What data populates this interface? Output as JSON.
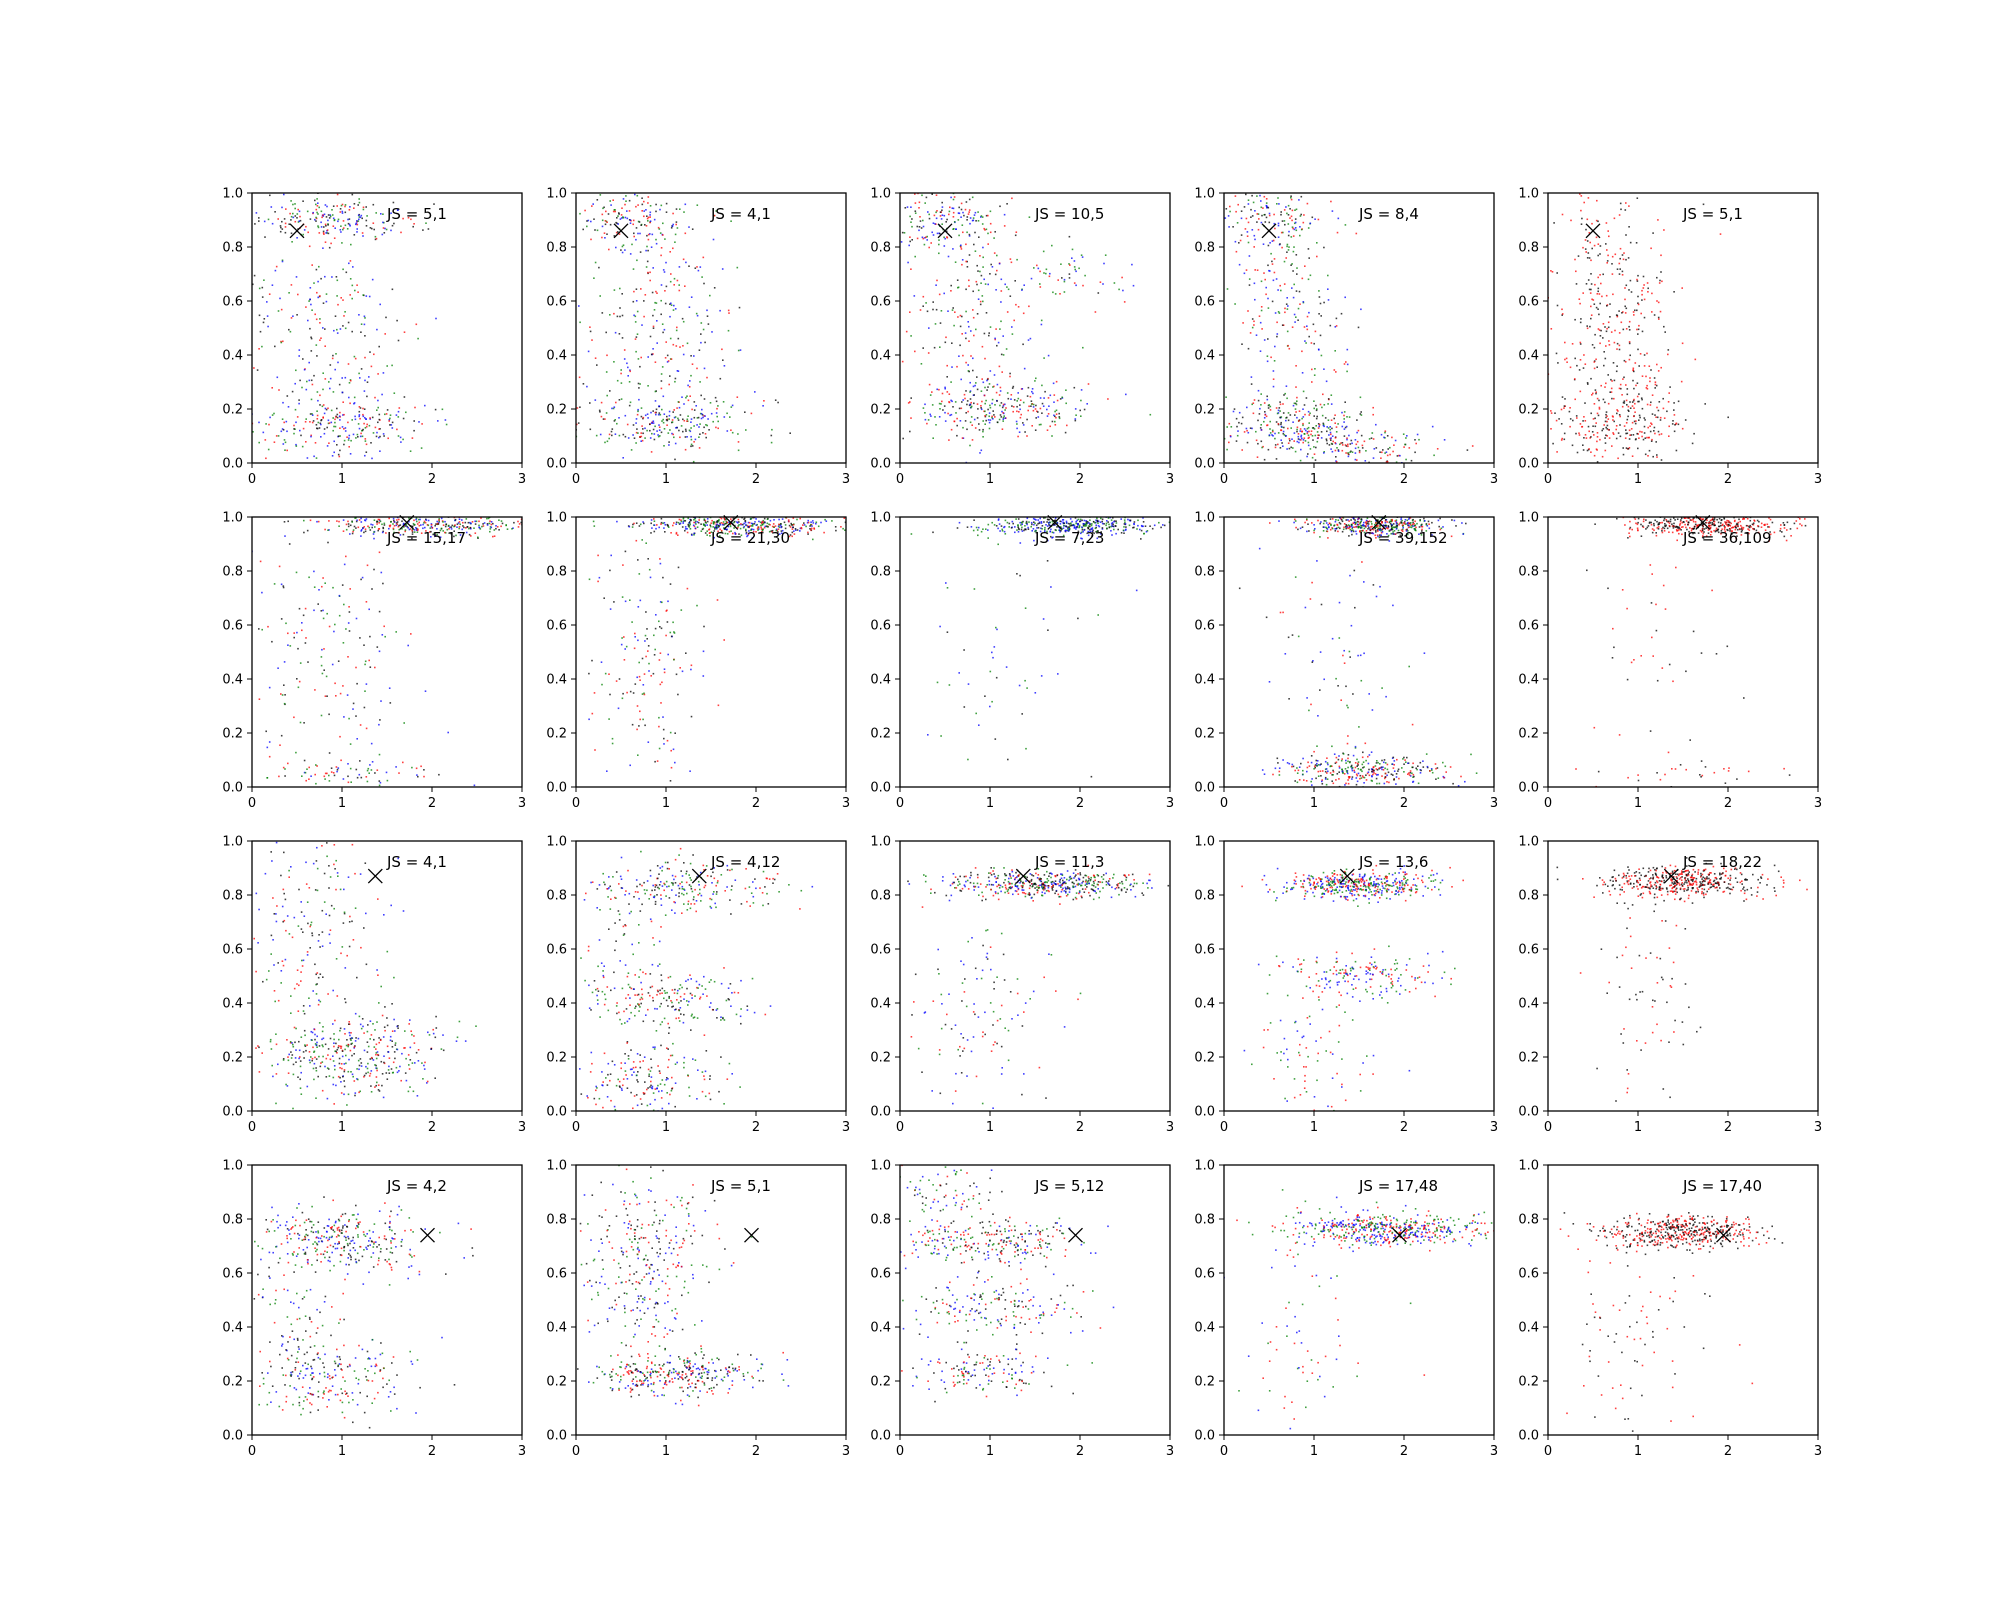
{
  "figure": {
    "colors": {
      "blue": "#0000ff",
      "red": "#ff0000",
      "green": "#008000",
      "black": "#000000",
      "axis": "#000000"
    }
  },
  "chart_data": [
    {
      "type": "scatter",
      "row": 0,
      "col": 0,
      "annotation": "JS = 5,1",
      "xlim": [
        0,
        3
      ],
      "ylim": [
        0,
        1
      ],
      "xticks": [
        "0",
        "1",
        "2",
        "3"
      ],
      "yticks": [
        "0.0",
        "0.2",
        "0.4",
        "0.6",
        "0.8",
        "1.0"
      ],
      "marker": {
        "x": 0.5,
        "y": 0.86
      },
      "series_colors": [
        "blue",
        "red",
        "green",
        "black"
      ],
      "clusters": [
        {
          "x": 0.9,
          "y": 0.9,
          "sx": 0.45,
          "sy": 0.04,
          "n": 200
        },
        {
          "x": 0.8,
          "y": 0.5,
          "sx": 0.4,
          "sy": 0.25,
          "n": 260
        },
        {
          "x": 1.0,
          "y": 0.14,
          "sx": 0.5,
          "sy": 0.05,
          "n": 220
        }
      ]
    },
    {
      "type": "scatter",
      "row": 0,
      "col": 1,
      "annotation": "JS = 4,1",
      "xlim": [
        0,
        3
      ],
      "ylim": [
        0,
        1
      ],
      "xticks": [
        "0",
        "1",
        "2",
        "3"
      ],
      "yticks": [
        "0.0",
        "0.2",
        "0.4",
        "0.6",
        "0.8",
        "1.0"
      ],
      "marker": {
        "x": 0.5,
        "y": 0.86
      },
      "series_colors": [
        "blue",
        "red",
        "green",
        "black"
      ],
      "clusters": [
        {
          "x": 0.6,
          "y": 0.9,
          "sx": 0.35,
          "sy": 0.05,
          "n": 160
        },
        {
          "x": 0.9,
          "y": 0.5,
          "sx": 0.45,
          "sy": 0.22,
          "n": 260
        },
        {
          "x": 1.0,
          "y": 0.15,
          "sx": 0.5,
          "sy": 0.05,
          "n": 240
        }
      ]
    },
    {
      "type": "scatter",
      "row": 0,
      "col": 2,
      "annotation": "JS = 10,5",
      "xlim": [
        0,
        3
      ],
      "ylim": [
        0,
        1
      ],
      "xticks": [
        "0",
        "1",
        "2",
        "3"
      ],
      "yticks": [
        "0.0",
        "0.2",
        "0.4",
        "0.6",
        "0.8",
        "1.0"
      ],
      "marker": {
        "x": 0.5,
        "y": 0.86
      },
      "series_colors": [
        "blue",
        "red",
        "green",
        "black"
      ],
      "clusters": [
        {
          "x": 0.5,
          "y": 0.9,
          "sx": 0.3,
          "sy": 0.06,
          "n": 160
        },
        {
          "x": 0.8,
          "y": 0.55,
          "sx": 0.4,
          "sy": 0.22,
          "n": 220
        },
        {
          "x": 1.1,
          "y": 0.2,
          "sx": 0.5,
          "sy": 0.05,
          "n": 280
        },
        {
          "x": 1.8,
          "y": 0.7,
          "sx": 0.4,
          "sy": 0.06,
          "n": 60
        }
      ]
    },
    {
      "type": "scatter",
      "row": 0,
      "col": 3,
      "annotation": "JS = 8,4",
      "xlim": [
        0,
        3
      ],
      "ylim": [
        0,
        1
      ],
      "xticks": [
        "0",
        "1",
        "2",
        "3"
      ],
      "yticks": [
        "0.0",
        "0.2",
        "0.4",
        "0.6",
        "0.8",
        "1.0"
      ],
      "marker": {
        "x": 0.5,
        "y": 0.86
      },
      "series_colors": [
        "blue",
        "red",
        "green",
        "black"
      ],
      "clusters": [
        {
          "x": 0.5,
          "y": 0.9,
          "sx": 0.3,
          "sy": 0.06,
          "n": 140
        },
        {
          "x": 0.7,
          "y": 0.55,
          "sx": 0.35,
          "sy": 0.2,
          "n": 200
        },
        {
          "x": 0.8,
          "y": 0.14,
          "sx": 0.4,
          "sy": 0.06,
          "n": 300
        },
        {
          "x": 1.5,
          "y": 0.06,
          "sx": 0.5,
          "sy": 0.04,
          "n": 120
        }
      ]
    },
    {
      "type": "scatter",
      "row": 0,
      "col": 4,
      "annotation": "JS = 5,1",
      "xlim": [
        0,
        3
      ],
      "ylim": [
        0,
        1
      ],
      "xticks": [
        "0",
        "1",
        "2",
        "3"
      ],
      "yticks": [
        "0.0",
        "0.2",
        "0.4",
        "0.6",
        "0.8",
        "1.0"
      ],
      "marker": {
        "x": 0.5,
        "y": 0.86
      },
      "series_colors": [
        "red",
        "black"
      ],
      "clusters": [
        {
          "x": 0.7,
          "y": 0.55,
          "sx": 0.35,
          "sy": 0.25,
          "n": 360
        },
        {
          "x": 0.8,
          "y": 0.15,
          "sx": 0.4,
          "sy": 0.07,
          "n": 260
        }
      ]
    },
    {
      "type": "scatter",
      "row": 1,
      "col": 0,
      "annotation": "JS = 15,17",
      "xlim": [
        0,
        3
      ],
      "ylim": [
        0,
        1
      ],
      "xticks": [
        "0",
        "1",
        "2",
        "3"
      ],
      "yticks": [
        "0.0",
        "0.2",
        "0.4",
        "0.6",
        "0.8",
        "1.0"
      ],
      "marker": {
        "x": 1.72,
        "y": 0.98
      },
      "series_colors": [
        "blue",
        "red",
        "green",
        "black"
      ],
      "clusters": [
        {
          "x": 1.9,
          "y": 0.97,
          "sx": 0.6,
          "sy": 0.02,
          "n": 360
        },
        {
          "x": 0.9,
          "y": 0.55,
          "sx": 0.45,
          "sy": 0.25,
          "n": 180
        },
        {
          "x": 1.0,
          "y": 0.04,
          "sx": 0.5,
          "sy": 0.03,
          "n": 80
        }
      ]
    },
    {
      "type": "scatter",
      "row": 1,
      "col": 1,
      "annotation": "JS = 21,30",
      "xlim": [
        0,
        3
      ],
      "ylim": [
        0,
        1
      ],
      "xticks": [
        "0",
        "1",
        "2",
        "3"
      ],
      "yticks": [
        "0.0",
        "0.2",
        "0.4",
        "0.6",
        "0.8",
        "1.0"
      ],
      "marker": {
        "x": 1.72,
        "y": 0.98
      },
      "series_colors": [
        "blue",
        "red",
        "green",
        "black"
      ],
      "clusters": [
        {
          "x": 1.8,
          "y": 0.97,
          "sx": 0.55,
          "sy": 0.02,
          "n": 460
        },
        {
          "x": 0.8,
          "y": 0.45,
          "sx": 0.35,
          "sy": 0.25,
          "n": 180
        }
      ]
    },
    {
      "type": "scatter",
      "row": 1,
      "col": 2,
      "annotation": "JS = 7,23",
      "xlim": [
        0,
        3
      ],
      "ylim": [
        0,
        1
      ],
      "xticks": [
        "0",
        "1",
        "2",
        "3"
      ],
      "yticks": [
        "0.0",
        "0.2",
        "0.4",
        "0.6",
        "0.8",
        "1.0"
      ],
      "marker": {
        "x": 1.72,
        "y": 0.98
      },
      "series_colors": [
        "blue",
        "green",
        "black"
      ],
      "clusters": [
        {
          "x": 1.9,
          "y": 0.97,
          "sx": 0.5,
          "sy": 0.02,
          "n": 440
        },
        {
          "x": 1.2,
          "y": 0.5,
          "sx": 0.5,
          "sy": 0.25,
          "n": 60
        }
      ]
    },
    {
      "type": "scatter",
      "row": 1,
      "col": 3,
      "annotation": "JS = 39,152",
      "xlim": [
        0,
        3
      ],
      "ylim": [
        0,
        1
      ],
      "xticks": [
        "0",
        "1",
        "2",
        "3"
      ],
      "yticks": [
        "0.0",
        "0.2",
        "0.4",
        "0.6",
        "0.8",
        "1.0"
      ],
      "marker": {
        "x": 1.72,
        "y": 0.98
      },
      "series_colors": [
        "blue",
        "red",
        "green",
        "black"
      ],
      "clusters": [
        {
          "x": 1.7,
          "y": 0.97,
          "sx": 0.4,
          "sy": 0.02,
          "n": 440
        },
        {
          "x": 1.5,
          "y": 0.06,
          "sx": 0.5,
          "sy": 0.03,
          "n": 320
        },
        {
          "x": 1.3,
          "y": 0.5,
          "sx": 0.5,
          "sy": 0.25,
          "n": 80
        }
      ]
    },
    {
      "type": "scatter",
      "row": 1,
      "col": 4,
      "annotation": "JS = 36,109",
      "xlim": [
        0,
        3
      ],
      "ylim": [
        0,
        1
      ],
      "xticks": [
        "0",
        "1",
        "2",
        "3"
      ],
      "yticks": [
        "0.0",
        "0.2",
        "0.4",
        "0.6",
        "0.8",
        "1.0"
      ],
      "marker": {
        "x": 1.72,
        "y": 0.98
      },
      "series_colors": [
        "red",
        "black"
      ],
      "clusters": [
        {
          "x": 1.8,
          "y": 0.97,
          "sx": 0.45,
          "sy": 0.02,
          "n": 420
        },
        {
          "x": 1.2,
          "y": 0.5,
          "sx": 0.4,
          "sy": 0.25,
          "n": 40
        },
        {
          "x": 1.5,
          "y": 0.05,
          "sx": 0.5,
          "sy": 0.03,
          "n": 30
        }
      ]
    },
    {
      "type": "scatter",
      "row": 2,
      "col": 0,
      "annotation": "JS = 4,1",
      "xlim": [
        0,
        3
      ],
      "ylim": [
        0,
        1
      ],
      "xticks": [
        "0",
        "1",
        "2",
        "3"
      ],
      "yticks": [
        "0.0",
        "0.2",
        "0.4",
        "0.6",
        "0.8",
        "1.0"
      ],
      "marker": {
        "x": 1.37,
        "y": 0.87
      },
      "series_colors": [
        "blue",
        "red",
        "green",
        "black"
      ],
      "clusters": [
        {
          "x": 0.7,
          "y": 0.7,
          "sx": 0.4,
          "sy": 0.2,
          "n": 200
        },
        {
          "x": 1.1,
          "y": 0.2,
          "sx": 0.5,
          "sy": 0.08,
          "n": 380
        }
      ]
    },
    {
      "type": "scatter",
      "row": 2,
      "col": 1,
      "annotation": "JS = 4,12",
      "xlim": [
        0,
        3
      ],
      "ylim": [
        0,
        1
      ],
      "xticks": [
        "0",
        "1",
        "2",
        "3"
      ],
      "yticks": [
        "0.0",
        "0.2",
        "0.4",
        "0.6",
        "0.8",
        "1.0"
      ],
      "marker": {
        "x": 1.37,
        "y": 0.87
      },
      "series_colors": [
        "blue",
        "red",
        "green",
        "black"
      ],
      "clusters": [
        {
          "x": 1.2,
          "y": 0.83,
          "sx": 0.55,
          "sy": 0.05,
          "n": 220
        },
        {
          "x": 1.0,
          "y": 0.42,
          "sx": 0.45,
          "sy": 0.05,
          "n": 180
        },
        {
          "x": 0.8,
          "y": 0.12,
          "sx": 0.4,
          "sy": 0.06,
          "n": 180
        },
        {
          "x": 0.6,
          "y": 0.6,
          "sx": 0.3,
          "sy": 0.15,
          "n": 80
        }
      ]
    },
    {
      "type": "scatter",
      "row": 2,
      "col": 2,
      "annotation": "JS = 11,3",
      "xlim": [
        0,
        3
      ],
      "ylim": [
        0,
        1
      ],
      "xticks": [
        "0",
        "1",
        "2",
        "3"
      ],
      "yticks": [
        "0.0",
        "0.2",
        "0.4",
        "0.6",
        "0.8",
        "1.0"
      ],
      "marker": {
        "x": 1.37,
        "y": 0.87
      },
      "series_colors": [
        "blue",
        "red",
        "green",
        "black"
      ],
      "clusters": [
        {
          "x": 1.6,
          "y": 0.84,
          "sx": 0.55,
          "sy": 0.025,
          "n": 480
        },
        {
          "x": 0.9,
          "y": 0.35,
          "sx": 0.4,
          "sy": 0.2,
          "n": 120
        }
      ]
    },
    {
      "type": "scatter",
      "row": 2,
      "col": 3,
      "annotation": "JS = 13,6",
      "xlim": [
        0,
        3
      ],
      "ylim": [
        0,
        1
      ],
      "xticks": [
        "0",
        "1",
        "2",
        "3"
      ],
      "yticks": [
        "0.0",
        "0.2",
        "0.4",
        "0.6",
        "0.8",
        "1.0"
      ],
      "marker": {
        "x": 1.37,
        "y": 0.87
      },
      "series_colors": [
        "blue",
        "red",
        "green"
      ],
      "clusters": [
        {
          "x": 1.5,
          "y": 0.84,
          "sx": 0.4,
          "sy": 0.025,
          "n": 460
        },
        {
          "x": 1.5,
          "y": 0.5,
          "sx": 0.45,
          "sy": 0.04,
          "n": 180
        },
        {
          "x": 1.0,
          "y": 0.2,
          "sx": 0.4,
          "sy": 0.12,
          "n": 80
        }
      ]
    },
    {
      "type": "scatter",
      "row": 2,
      "col": 4,
      "annotation": "JS = 18,22",
      "xlim": [
        0,
        3
      ],
      "ylim": [
        0,
        1
      ],
      "xticks": [
        "0",
        "1",
        "2",
        "3"
      ],
      "yticks": [
        "0.0",
        "0.2",
        "0.4",
        "0.6",
        "0.8",
        "1.0"
      ],
      "marker": {
        "x": 1.37,
        "y": 0.87
      },
      "series_colors": [
        "red",
        "black"
      ],
      "clusters": [
        {
          "x": 1.5,
          "y": 0.85,
          "sx": 0.45,
          "sy": 0.03,
          "n": 480
        },
        {
          "x": 1.1,
          "y": 0.4,
          "sx": 0.3,
          "sy": 0.2,
          "n": 70
        }
      ]
    },
    {
      "type": "scatter",
      "row": 3,
      "col": 0,
      "annotation": "JS = 4,2",
      "xlim": [
        0,
        3
      ],
      "ylim": [
        0,
        1
      ],
      "xticks": [
        "0",
        "1",
        "2",
        "3"
      ],
      "yticks": [
        "0.0",
        "0.2",
        "0.4",
        "0.6",
        "0.8",
        "1.0"
      ],
      "marker": {
        "x": 1.95,
        "y": 0.74
      },
      "series_colors": [
        "blue",
        "red",
        "green",
        "black"
      ],
      "clusters": [
        {
          "x": 1.0,
          "y": 0.72,
          "sx": 0.5,
          "sy": 0.06,
          "n": 320
        },
        {
          "x": 0.9,
          "y": 0.22,
          "sx": 0.45,
          "sy": 0.08,
          "n": 220
        },
        {
          "x": 0.5,
          "y": 0.45,
          "sx": 0.3,
          "sy": 0.15,
          "n": 80
        }
      ]
    },
    {
      "type": "scatter",
      "row": 3,
      "col": 1,
      "annotation": "JS = 5,1",
      "xlim": [
        0,
        3
      ],
      "ylim": [
        0,
        1
      ],
      "xticks": [
        "0",
        "1",
        "2",
        "3"
      ],
      "yticks": [
        "0.0",
        "0.2",
        "0.4",
        "0.6",
        "0.8",
        "1.0"
      ],
      "marker": {
        "x": 1.95,
        "y": 0.74
      },
      "series_colors": [
        "blue",
        "red",
        "green",
        "black"
      ],
      "clusters": [
        {
          "x": 0.8,
          "y": 0.75,
          "sx": 0.4,
          "sy": 0.12,
          "n": 200
        },
        {
          "x": 0.7,
          "y": 0.5,
          "sx": 0.35,
          "sy": 0.1,
          "n": 120
        },
        {
          "x": 1.1,
          "y": 0.22,
          "sx": 0.5,
          "sy": 0.04,
          "n": 320
        }
      ]
    },
    {
      "type": "scatter",
      "row": 3,
      "col": 2,
      "annotation": "JS = 5,12",
      "xlim": [
        0,
        3
      ],
      "ylim": [
        0,
        1
      ],
      "xticks": [
        "0",
        "1",
        "2",
        "3"
      ],
      "yticks": [
        "0.0",
        "0.2",
        "0.4",
        "0.6",
        "0.8",
        "1.0"
      ],
      "marker": {
        "x": 1.95,
        "y": 0.74
      },
      "series_colors": [
        "blue",
        "red",
        "green",
        "black"
      ],
      "clusters": [
        {
          "x": 1.0,
          "y": 0.72,
          "sx": 0.5,
          "sy": 0.04,
          "n": 260
        },
        {
          "x": 1.0,
          "y": 0.48,
          "sx": 0.45,
          "sy": 0.06,
          "n": 180
        },
        {
          "x": 0.9,
          "y": 0.23,
          "sx": 0.4,
          "sy": 0.04,
          "n": 140
        },
        {
          "x": 0.5,
          "y": 0.9,
          "sx": 0.3,
          "sy": 0.06,
          "n": 80
        }
      ]
    },
    {
      "type": "scatter",
      "row": 3,
      "col": 3,
      "annotation": "JS = 17,48",
      "xlim": [
        0,
        3
      ],
      "ylim": [
        0,
        1
      ],
      "xticks": [
        "0",
        "1",
        "2",
        "3"
      ],
      "yticks": [
        "0.0",
        "0.2",
        "0.4",
        "0.6",
        "0.8",
        "1.0"
      ],
      "marker": {
        "x": 1.95,
        "y": 0.74
      },
      "series_colors": [
        "blue",
        "red",
        "green"
      ],
      "clusters": [
        {
          "x": 1.8,
          "y": 0.76,
          "sx": 0.55,
          "sy": 0.03,
          "n": 520
        },
        {
          "x": 0.8,
          "y": 0.35,
          "sx": 0.4,
          "sy": 0.25,
          "n": 80
        }
      ]
    },
    {
      "type": "scatter",
      "row": 3,
      "col": 4,
      "annotation": "JS = 17,40",
      "xlim": [
        0,
        3
      ],
      "ylim": [
        0,
        1
      ],
      "xticks": [
        "0",
        "1",
        "2",
        "3"
      ],
      "yticks": [
        "0.0",
        "0.2",
        "0.4",
        "0.6",
        "0.8",
        "1.0"
      ],
      "marker": {
        "x": 1.95,
        "y": 0.74
      },
      "series_colors": [
        "red",
        "black"
      ],
      "clusters": [
        {
          "x": 1.5,
          "y": 0.75,
          "sx": 0.45,
          "sy": 0.03,
          "n": 500
        },
        {
          "x": 1.0,
          "y": 0.3,
          "sx": 0.4,
          "sy": 0.2,
          "n": 90
        }
      ]
    }
  ]
}
